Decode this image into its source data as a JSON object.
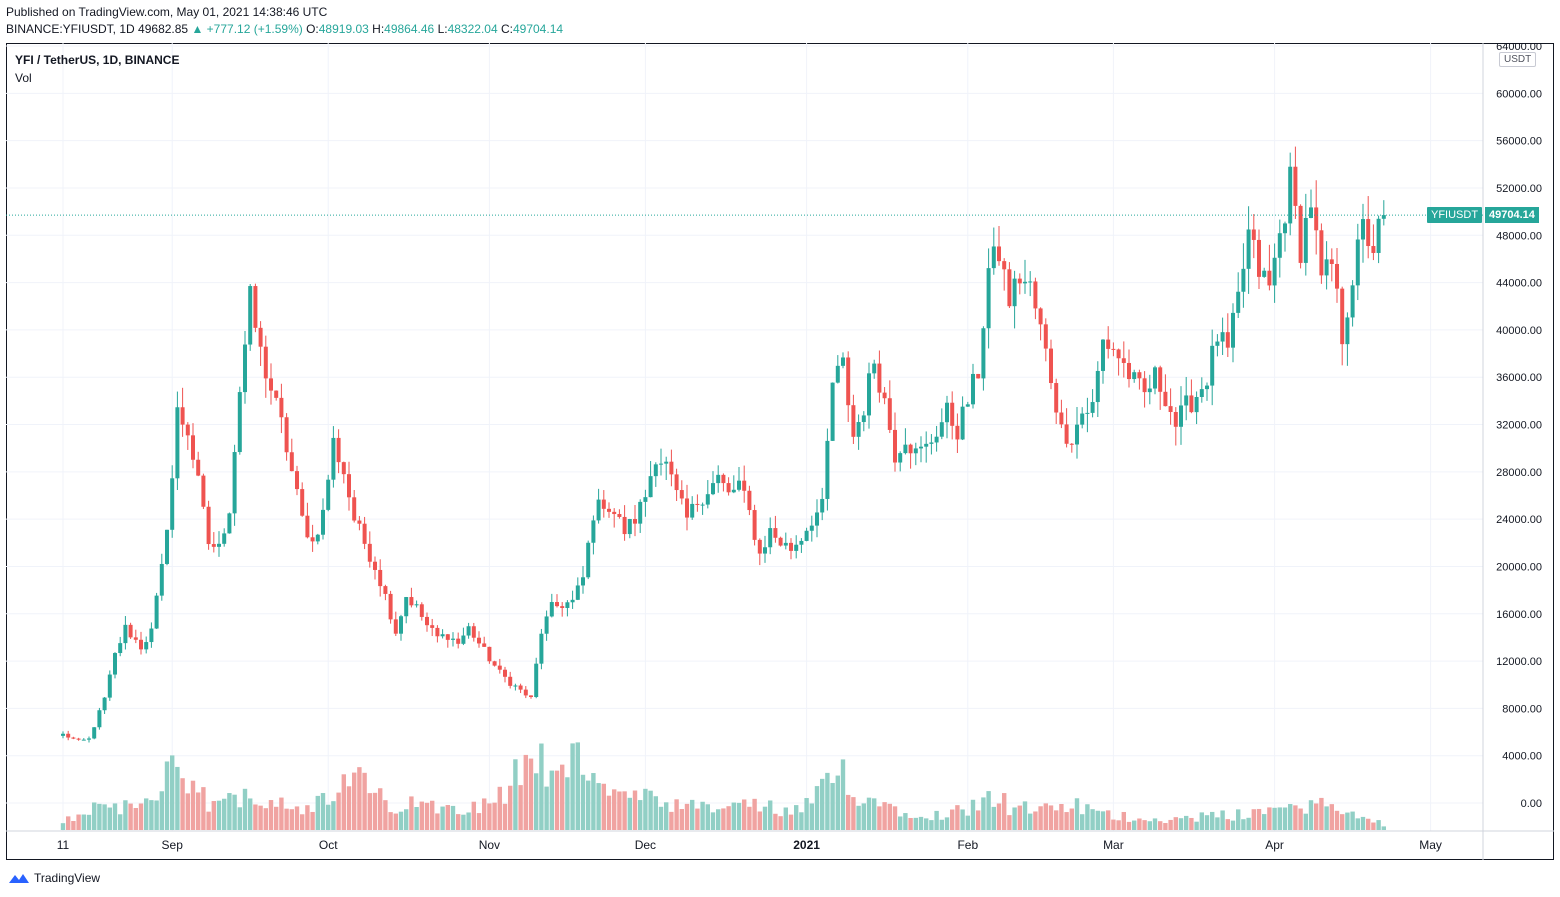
{
  "header": {
    "published": "Published on TradingView.com, May 01, 2021 14:38:46 UTC",
    "symbol": "BINANCE:YFIUSDT, 1D",
    "last": "49682.85",
    "change": "▲ +777.12 (+1.59%)",
    "o_label": "O:",
    "o_value": "48919.03",
    "h_label": "H:",
    "h_value": "49864.46",
    "l_label": "L:",
    "l_value": "48322.04",
    "c_label": "C:",
    "c_value": "49704.14"
  },
  "legend": {
    "title": "YFI / TetherUS, 1D, BINANCE",
    "volume": "Vol"
  },
  "axis": {
    "unit": "USDT"
  },
  "price_tag": {
    "symbol": "YFIUSDT",
    "value": "49704.14"
  },
  "footer": {
    "brand": "TradingView"
  },
  "colors": {
    "up": "#26a69a",
    "down": "#ef5350",
    "up_vol": "#91cfc5",
    "down_vol": "#f0a3a1",
    "grid": "#f0f3fa"
  },
  "chart_data": {
    "type": "candlestick",
    "title": "YFI / TetherUS, 1D, BINANCE",
    "ylim": [
      -2000,
      64000
    ],
    "y_ticks": [
      64000,
      60000,
      56000,
      52000,
      48000,
      44000,
      40000,
      36000,
      32000,
      28000,
      24000,
      20000,
      16000,
      12000,
      8000,
      4000,
      0
    ],
    "y_tick_labels": [
      "64000.00",
      "60000.00",
      "56000.00",
      "52000.00",
      "48000.00",
      "44000.00",
      "40000.00",
      "36000.00",
      "32000.00",
      "28000.00",
      "24000.00",
      "20000.00",
      "16000.00",
      "12000.00",
      "8000.00",
      "4000.00",
      "0.00"
    ],
    "x_labels": [
      {
        "label": "11",
        "day": 0,
        "bold": false
      },
      {
        "label": "Sep",
        "day": 21,
        "bold": false
      },
      {
        "label": "Oct",
        "day": 51,
        "bold": false
      },
      {
        "label": "Nov",
        "day": 82,
        "bold": false
      },
      {
        "label": "Dec",
        "day": 112,
        "bold": false
      },
      {
        "label": "2021",
        "day": 143,
        "bold": true
      },
      {
        "label": "Feb",
        "day": 174,
        "bold": false
      },
      {
        "label": "Mar",
        "day": 202,
        "bold": false
      },
      {
        "label": "Apr",
        "day": 233,
        "bold": false
      },
      {
        "label": "May",
        "day": 263,
        "bold": false
      }
    ],
    "last_price": 49704.14,
    "anchors": [
      [
        0,
        5800
      ],
      [
        3,
        5200
      ],
      [
        5,
        5400
      ],
      [
        8,
        8800
      ],
      [
        10,
        12500
      ],
      [
        12,
        14800
      ],
      [
        15,
        13200
      ],
      [
        17,
        14500
      ],
      [
        19,
        19800
      ],
      [
        21,
        27500
      ],
      [
        22,
        33000
      ],
      [
        24,
        31500
      ],
      [
        26,
        27000
      ],
      [
        28,
        22000
      ],
      [
        30,
        21500
      ],
      [
        32,
        25000
      ],
      [
        34,
        35000
      ],
      [
        36,
        42500
      ],
      [
        38,
        38000
      ],
      [
        40,
        35000
      ],
      [
        42,
        32000
      ],
      [
        44,
        28000
      ],
      [
        46,
        24000
      ],
      [
        48,
        22000
      ],
      [
        50,
        24500
      ],
      [
        52,
        30500
      ],
      [
        54,
        28000
      ],
      [
        56,
        24000
      ],
      [
        58,
        22000
      ],
      [
        60,
        20000
      ],
      [
        62,
        17500
      ],
      [
        64,
        14500
      ],
      [
        66,
        17500
      ],
      [
        68,
        16500
      ],
      [
        70,
        15000
      ],
      [
        72,
        14000
      ],
      [
        74,
        14200
      ],
      [
        76,
        13500
      ],
      [
        78,
        14800
      ],
      [
        80,
        13500
      ],
      [
        82,
        12200
      ],
      [
        84,
        11000
      ],
      [
        86,
        10200
      ],
      [
        88,
        9500
      ],
      [
        90,
        8800
      ],
      [
        92,
        14500
      ],
      [
        94,
        16500
      ],
      [
        96,
        16800
      ],
      [
        98,
        17000
      ],
      [
        100,
        19000
      ],
      [
        102,
        24500
      ],
      [
        104,
        25500
      ],
      [
        106,
        24500
      ],
      [
        108,
        23000
      ],
      [
        110,
        24000
      ],
      [
        112,
        26000
      ],
      [
        114,
        29500
      ],
      [
        116,
        28500
      ],
      [
        118,
        26000
      ],
      [
        120,
        24000
      ],
      [
        122,
        25500
      ],
      [
        124,
        26500
      ],
      [
        126,
        27500
      ],
      [
        128,
        26000
      ],
      [
        130,
        27000
      ],
      [
        132,
        24500
      ],
      [
        134,
        21000
      ],
      [
        136,
        23000
      ],
      [
        138,
        22000
      ],
      [
        140,
        21500
      ],
      [
        142,
        22500
      ],
      [
        144,
        24000
      ],
      [
        146,
        25000
      ],
      [
        148,
        35500
      ],
      [
        150,
        37000
      ],
      [
        152,
        31000
      ],
      [
        154,
        33500
      ],
      [
        156,
        37500
      ],
      [
        158,
        34000
      ],
      [
        160,
        29500
      ],
      [
        162,
        31000
      ],
      [
        164,
        29500
      ],
      [
        166,
        30000
      ],
      [
        168,
        31500
      ],
      [
        170,
        33000
      ],
      [
        172,
        31500
      ],
      [
        174,
        34000
      ],
      [
        176,
        36500
      ],
      [
        178,
        45000
      ],
      [
        180,
        46500
      ],
      [
        182,
        42500
      ],
      [
        184,
        44500
      ],
      [
        186,
        43500
      ],
      [
        188,
        40000
      ],
      [
        190,
        36000
      ],
      [
        192,
        31500
      ],
      [
        194,
        31000
      ],
      [
        196,
        33000
      ],
      [
        198,
        33500
      ],
      [
        200,
        39000
      ],
      [
        202,
        38500
      ],
      [
        204,
        37000
      ],
      [
        206,
        35500
      ],
      [
        208,
        34500
      ],
      [
        210,
        36000
      ],
      [
        212,
        34500
      ],
      [
        214,
        32000
      ],
      [
        216,
        33500
      ],
      [
        218,
        34500
      ],
      [
        220,
        36000
      ],
      [
        222,
        39500
      ],
      [
        224,
        38000
      ],
      [
        226,
        42500
      ],
      [
        228,
        48000
      ],
      [
        230,
        45000
      ],
      [
        232,
        43500
      ],
      [
        234,
        48000
      ],
      [
        236,
        52500
      ],
      [
        238,
        47000
      ],
      [
        240,
        51000
      ],
      [
        242,
        44000
      ],
      [
        244,
        45500
      ],
      [
        246,
        39500
      ],
      [
        248,
        44500
      ],
      [
        250,
        48500
      ],
      [
        252,
        47000
      ],
      [
        254,
        49704
      ]
    ],
    "volume_anchors": [
      [
        0,
        600
      ],
      [
        8,
        1800
      ],
      [
        14,
        1500
      ],
      [
        21,
        3600
      ],
      [
        26,
        2200
      ],
      [
        30,
        1600
      ],
      [
        36,
        2600
      ],
      [
        44,
        1700
      ],
      [
        48,
        1600
      ],
      [
        52,
        2000
      ],
      [
        56,
        3700
      ],
      [
        62,
        1700
      ],
      [
        70,
        1600
      ],
      [
        78,
        1700
      ],
      [
        84,
        2200
      ],
      [
        88,
        4000
      ],
      [
        90,
        5600
      ],
      [
        94,
        3500
      ],
      [
        98,
        4500
      ],
      [
        102,
        4300
      ],
      [
        106,
        2300
      ],
      [
        112,
        2000
      ],
      [
        118,
        1500
      ],
      [
        124,
        1400
      ],
      [
        132,
        1700
      ],
      [
        138,
        1300
      ],
      [
        142,
        1200
      ],
      [
        146,
        2600
      ],
      [
        150,
        3800
      ],
      [
        154,
        2200
      ],
      [
        160,
        1500
      ],
      [
        168,
        1000
      ],
      [
        174,
        1400
      ],
      [
        178,
        2600
      ],
      [
        182,
        1600
      ],
      [
        188,
        1200
      ],
      [
        194,
        1700
      ],
      [
        200,
        1000
      ],
      [
        208,
        800
      ],
      [
        214,
        700
      ],
      [
        220,
        900
      ],
      [
        226,
        1000
      ],
      [
        230,
        1400
      ],
      [
        236,
        1300
      ],
      [
        240,
        1900
      ],
      [
        246,
        1200
      ],
      [
        250,
        800
      ],
      [
        254,
        400
      ]
    ]
  }
}
